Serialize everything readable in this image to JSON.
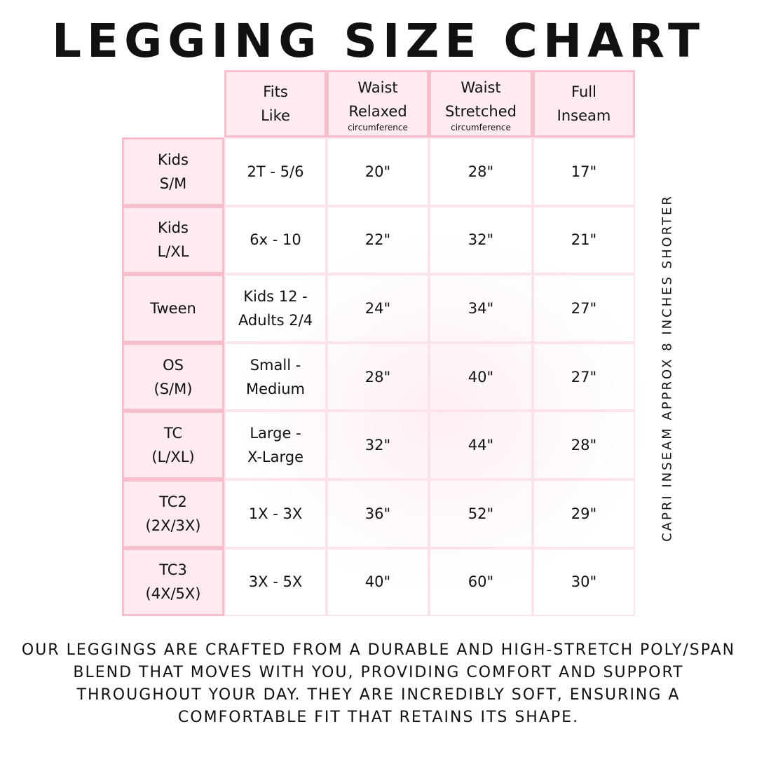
{
  "title": "LEGGING SIZE CHART",
  "headers": [
    {
      "line1": "Fits",
      "line2": "Like",
      "sub": ""
    },
    {
      "line1": "Waist",
      "line2": "Relaxed",
      "sub": "circumference"
    },
    {
      "line1": "Waist",
      "line2": "Stretched",
      "sub": "circumference"
    },
    {
      "line1": "Full",
      "line2": "Inseam",
      "sub": ""
    }
  ],
  "rows": [
    {
      "size": [
        "Kids",
        "S/M"
      ],
      "fits": [
        "2T - 5/6"
      ],
      "relaxed": "20\"",
      "stretched": "28\"",
      "inseam": "17\""
    },
    {
      "size": [
        "Kids",
        "L/XL"
      ],
      "fits": [
        "6x - 10"
      ],
      "relaxed": "22\"",
      "stretched": "32\"",
      "inseam": "21\""
    },
    {
      "size": [
        "Tween"
      ],
      "fits": [
        "Kids 12 -",
        "Adults 2/4"
      ],
      "relaxed": "24\"",
      "stretched": "34\"",
      "inseam": "27\""
    },
    {
      "size": [
        "OS",
        "(S/M)"
      ],
      "fits": [
        "Small -",
        "Medium"
      ],
      "relaxed": "28\"",
      "stretched": "40\"",
      "inseam": "27\""
    },
    {
      "size": [
        "TC",
        "(L/XL)"
      ],
      "fits": [
        "Large -",
        "X-Large"
      ],
      "relaxed": "32\"",
      "stretched": "44\"",
      "inseam": "28\""
    },
    {
      "size": [
        "TC2",
        "(2X/3X)"
      ],
      "fits": [
        "1X - 3X"
      ],
      "relaxed": "36\"",
      "stretched": "52\"",
      "inseam": "29\""
    },
    {
      "size": [
        "TC3",
        "(4X/5X)"
      ],
      "fits": [
        "3X - 5X"
      ],
      "relaxed": "40\"",
      "stretched": "60\"",
      "inseam": "30\""
    }
  ],
  "side_note": "CAPRI INSEAM APPROX 8 INCHES SHORTER",
  "description": "Our leggings are crafted from a durable and high-stretch poly/span blend that moves with you, providing comfort and support throughout your day. They are incredibly soft, ensuring a comfortable fit that retains its shape.",
  "colors": {
    "border": "#f7bfce",
    "header_bg": "#fdebf0"
  }
}
